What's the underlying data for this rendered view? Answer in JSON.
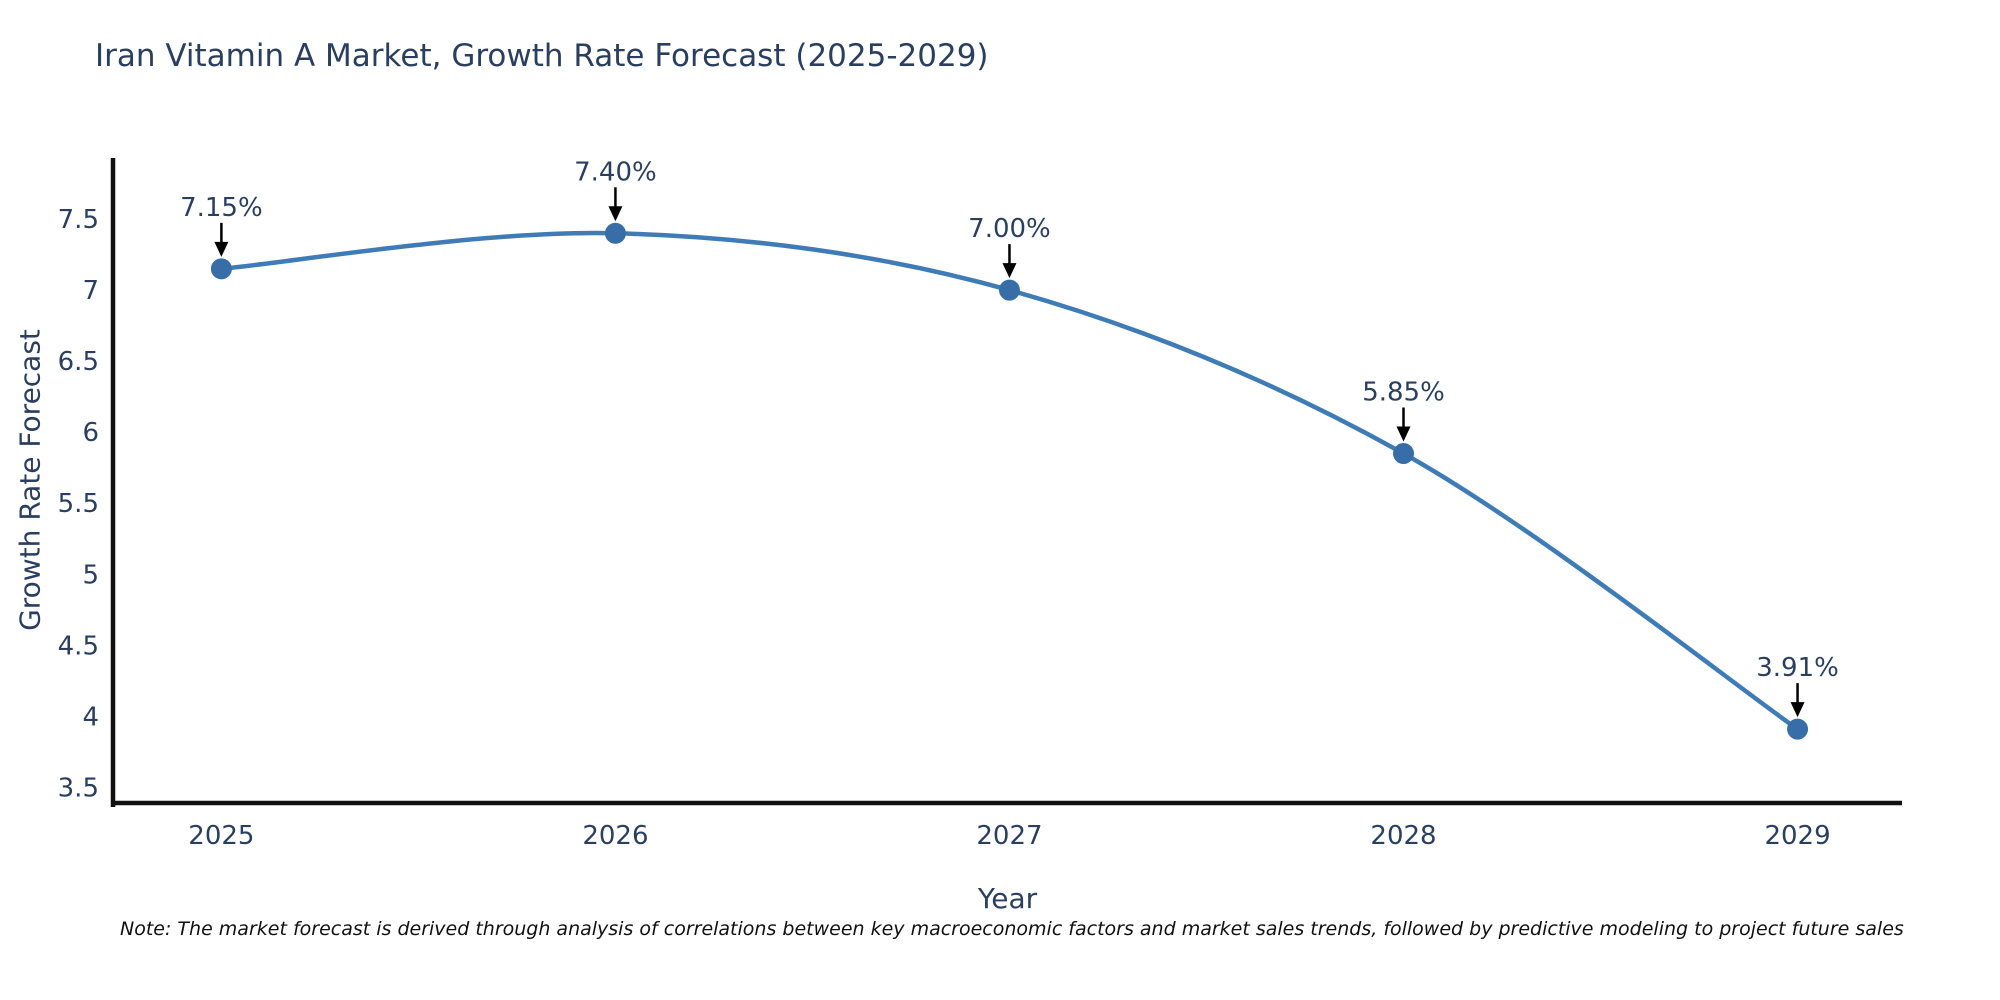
{
  "title": "Iran Vitamin A Market, Growth Rate Forecast (2025-2029)",
  "footnote": "Note: The market forecast is derived through analysis of correlations between key macroeconomic factors and market sales trends, followed by predictive modeling to project future sales",
  "chart_data": {
    "type": "line",
    "title": "Iran Vitamin A Market, Growth Rate Forecast (2025-2029)",
    "xlabel": "Year",
    "ylabel": "Growth Rate Forecast",
    "x": [
      2025,
      2026,
      2027,
      2028,
      2029
    ],
    "x_tick_labels": [
      "2025",
      "2026",
      "2027",
      "2028",
      "2029"
    ],
    "values": [
      7.15,
      7.4,
      7.0,
      5.85,
      3.91
    ],
    "point_labels": [
      "7.15%",
      "7.40%",
      "7.00%",
      "5.85%",
      "3.91%"
    ],
    "yticks": [
      3.5,
      4,
      4.5,
      5,
      5.5,
      6,
      6.5,
      7,
      7.5
    ],
    "ytick_labels": [
      "3.5",
      "4",
      "4.5",
      "5",
      "5.5",
      "6",
      "6.5",
      "7",
      "7.5"
    ],
    "ylim": [
      3.39,
      7.93
    ],
    "xlim": [
      2024.73,
      2029.26
    ],
    "grid": false,
    "legend": "none",
    "line_shape": "spline",
    "colors": {
      "line": "#3f7cb6",
      "marker": "#386ea8",
      "axis_line": "#111111",
      "text": "#2a3f5f",
      "annotation_text": "#2a3f5f",
      "annotation_arrow": "#000000",
      "background": "#ffffff"
    }
  }
}
